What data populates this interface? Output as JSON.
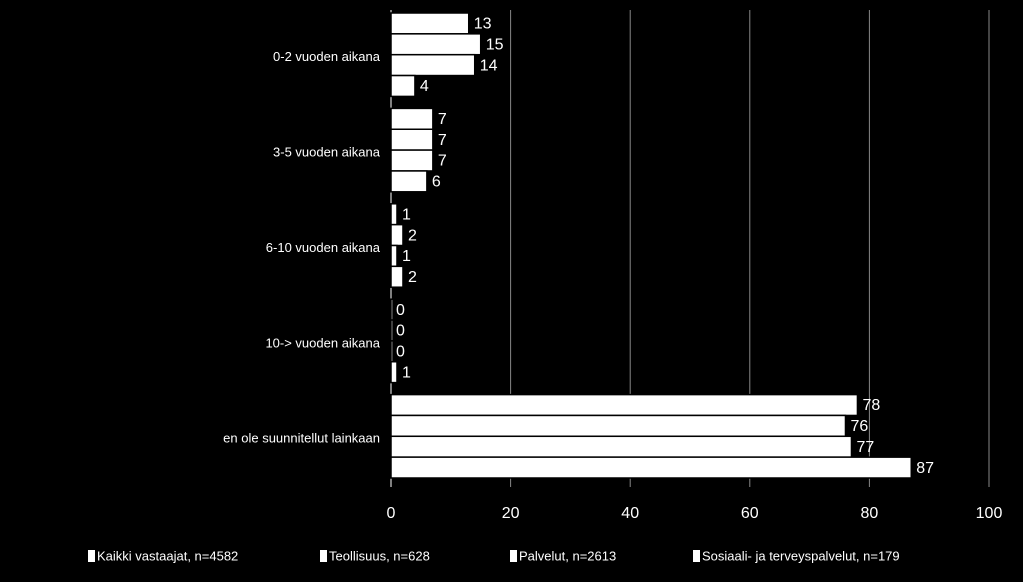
{
  "chart_data": {
    "type": "hbar",
    "categories": [
      "0-2 vuoden aikana",
      "3-5 vuoden aikana",
      "6-10 vuoden aikana",
      "10-> vuoden aikana",
      "en ole suunnitellut lainkaan"
    ],
    "series": [
      {
        "name": "Kaikki vastaajat, n=4582",
        "color": "#ffffff",
        "values": [
          13,
          7,
          1,
          0,
          78
        ]
      },
      {
        "name": "Teollisuus, n=628",
        "color": "#ffffff",
        "values": [
          15,
          7,
          2,
          0,
          76
        ]
      },
      {
        "name": "Palvelut, n=2613",
        "color": "#ffffff",
        "values": [
          14,
          7,
          1,
          0,
          77
        ]
      },
      {
        "name": "Sosiaali- ja terveyspalvelut, n=179",
        "color": "#ffffff",
        "values": [
          4,
          6,
          2,
          1,
          87
        ]
      }
    ],
    "xlim": [
      0,
      100
    ],
    "xticks": [
      0,
      20,
      40,
      60,
      80,
      100
    ],
    "grid": true,
    "legend": "bottom"
  }
}
